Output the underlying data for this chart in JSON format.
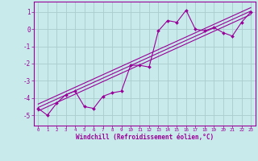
{
  "xlabel": "Windchill (Refroidissement éolien,°C)",
  "background_color": "#c8eaea",
  "grid_color": "#aacccc",
  "line_color": "#990099",
  "border_color": "#990099",
  "xlim": [
    -0.5,
    23.5
  ],
  "ylim": [
    -5.6,
    1.6
  ],
  "yticks": [
    -5,
    -4,
    -3,
    -2,
    -1,
    0,
    1
  ],
  "xticks": [
    0,
    1,
    2,
    3,
    4,
    5,
    6,
    7,
    8,
    9,
    10,
    11,
    12,
    13,
    14,
    15,
    16,
    17,
    18,
    19,
    20,
    21,
    22,
    23
  ],
  "data_x": [
    0,
    1,
    2,
    3,
    4,
    5,
    6,
    7,
    8,
    9,
    10,
    11,
    12,
    13,
    14,
    15,
    16,
    17,
    18,
    19,
    20,
    21,
    22,
    23
  ],
  "data_y": [
    -4.6,
    -5.0,
    -4.3,
    -3.8,
    -3.6,
    -4.5,
    -4.6,
    -3.9,
    -3.7,
    -3.6,
    -2.1,
    -2.1,
    -2.2,
    -0.1,
    0.5,
    0.4,
    1.1,
    0.0,
    -0.1,
    0.1,
    -0.2,
    -0.4,
    0.4,
    1.0
  ],
  "reg_lines": [
    {
      "x": [
        0,
        23
      ],
      "y": [
        -4.75,
        0.85
      ]
    },
    {
      "x": [
        0,
        23
      ],
      "y": [
        -4.55,
        1.05
      ]
    },
    {
      "x": [
        0,
        23
      ],
      "y": [
        -4.35,
        1.25
      ]
    }
  ]
}
